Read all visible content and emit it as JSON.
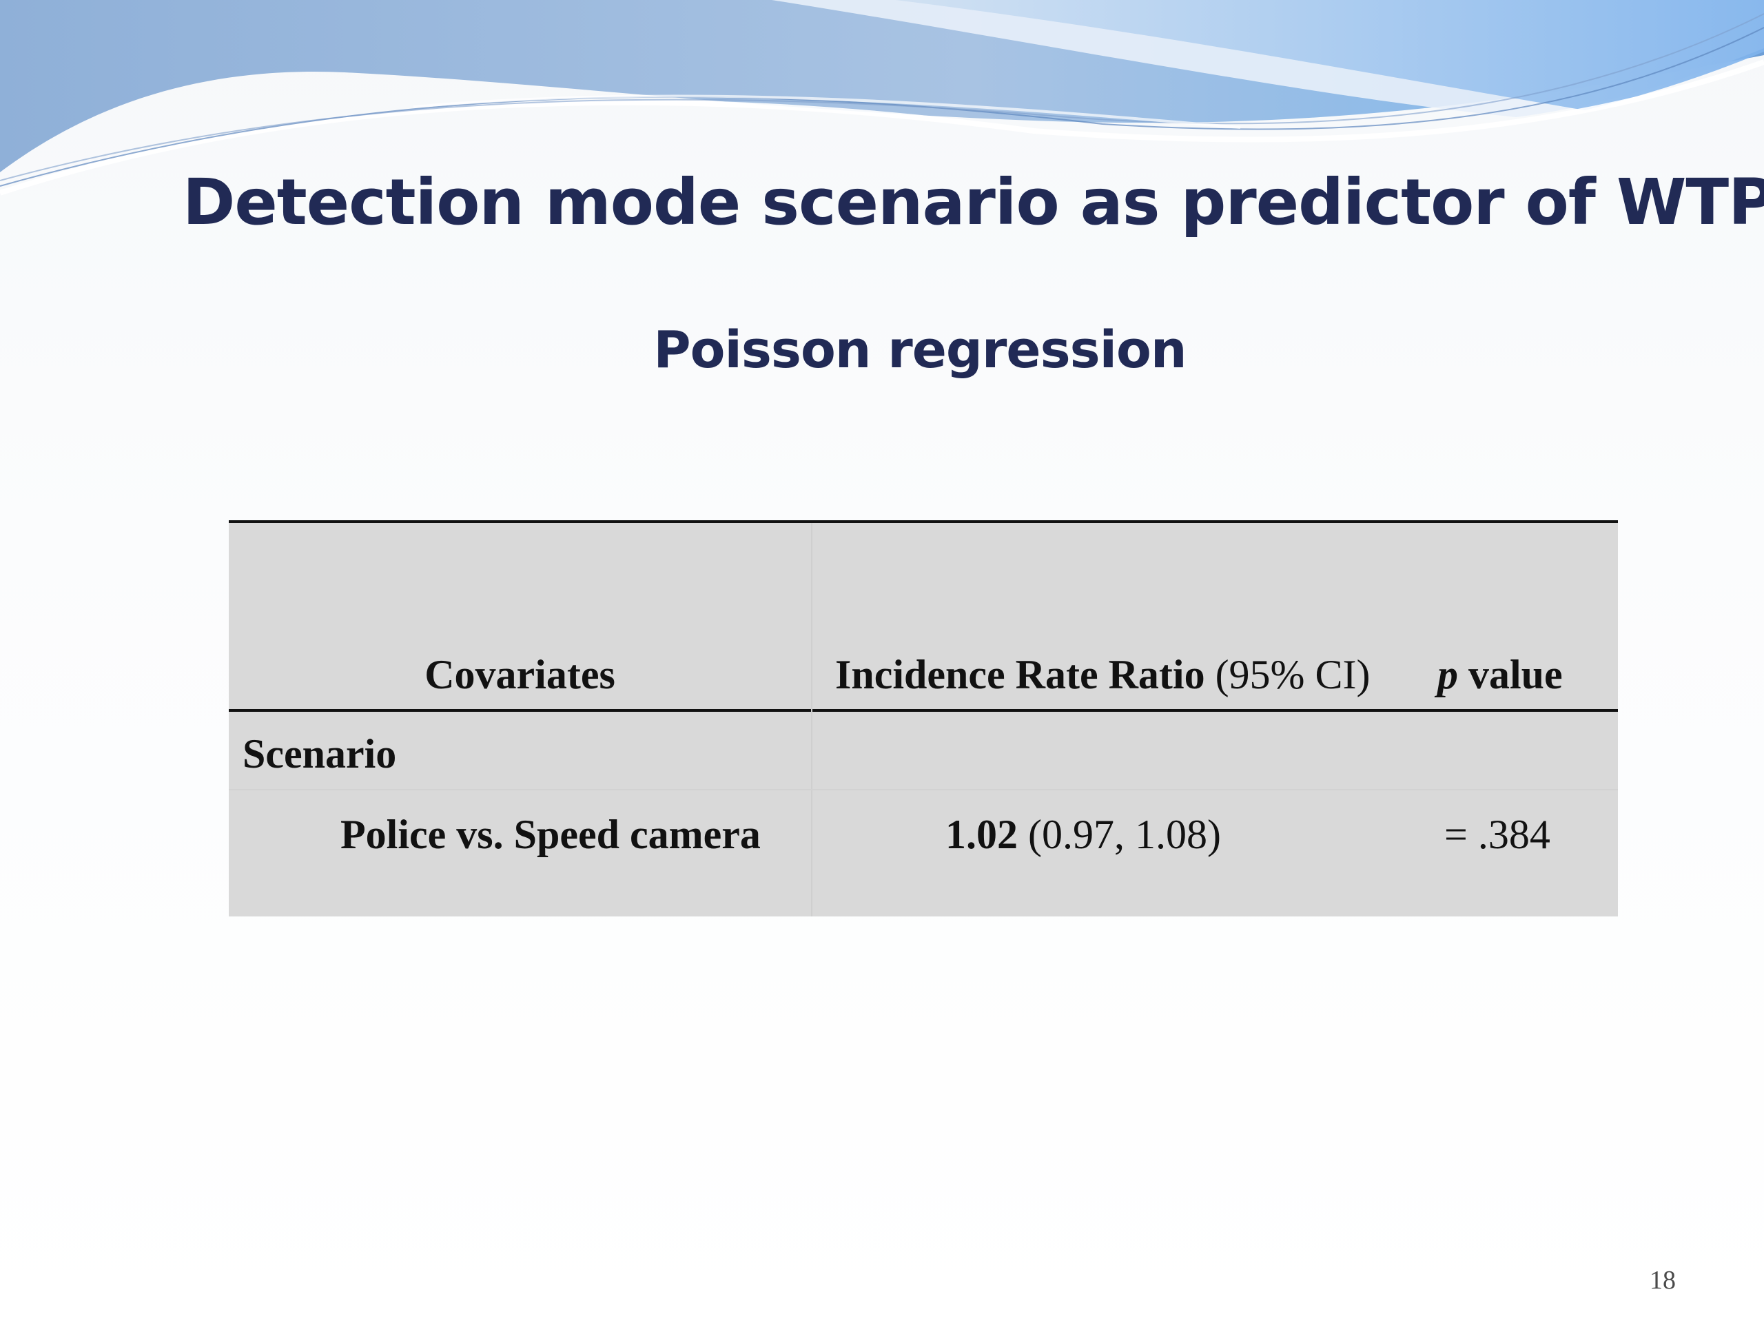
{
  "slide": {
    "title": "Detection mode scenario as predictor of WTP",
    "subtitle": "Poisson regression",
    "page_number": "18"
  },
  "table": {
    "headers": {
      "covariates": "Covariates",
      "irr_label": "Incidence Rate Ratio",
      "ci_label": "(95% CI)",
      "p_symbol": "p",
      "p_label": "value"
    },
    "rows": [
      {
        "label": "Scenario",
        "irr": "",
        "ci": "",
        "p": ""
      },
      {
        "label": "Police vs. Speed camera",
        "irr": "1.02",
        "ci": "(0.97, 1.08)",
        "p": "= .384"
      }
    ]
  },
  "colors": {
    "title": "#212a55",
    "table_bg": "#d9d9d9",
    "accent_blue": "#7ea3d3"
  }
}
